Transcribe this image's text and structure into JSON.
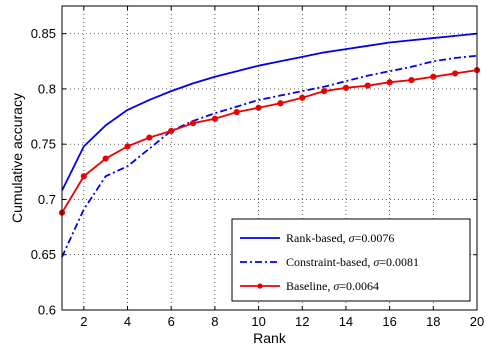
{
  "chart_data": {
    "type": "line",
    "xlabel": "Rank",
    "ylabel": "Cumulative accuracy",
    "xlim": [
      1,
      20
    ],
    "ylim": [
      0.6,
      0.875
    ],
    "xticks": [
      2,
      4,
      6,
      8,
      10,
      12,
      14,
      16,
      18,
      20
    ],
    "yticks": [
      0.6,
      0.65,
      0.7,
      0.75,
      0.8,
      0.85
    ],
    "ytick_labels": [
      "0.6",
      "0.65",
      "0.7",
      "0.75",
      "0.8",
      "0.85"
    ],
    "grid": true,
    "grid_style": "dotted",
    "legend_position": "bottom-right",
    "x": [
      1,
      2,
      3,
      4,
      5,
      6,
      7,
      8,
      9,
      10,
      11,
      12,
      13,
      14,
      15,
      16,
      17,
      18,
      19,
      20
    ],
    "series": [
      {
        "name": "Rank-based, ",
        "sigma": "0.0076",
        "color": "#0000ee",
        "style": "solid",
        "markers": false,
        "values": [
          0.708,
          0.748,
          0.767,
          0.781,
          0.79,
          0.798,
          0.805,
          0.811,
          0.816,
          0.821,
          0.825,
          0.829,
          0.833,
          0.836,
          0.839,
          0.842,
          0.844,
          0.846,
          0.848,
          0.85
        ]
      },
      {
        "name": "Constraint-based, ",
        "sigma": "0.0081",
        "color": "#0000ee",
        "style": "dashdot",
        "markers": false,
        "values": [
          0.648,
          0.691,
          0.721,
          0.73,
          0.746,
          0.762,
          0.771,
          0.778,
          0.784,
          0.79,
          0.794,
          0.798,
          0.802,
          0.807,
          0.812,
          0.816,
          0.82,
          0.825,
          0.828,
          0.83
        ]
      },
      {
        "name": "Baseline, ",
        "sigma": "0.0064",
        "color": "#ee0000",
        "style": "solid",
        "markers": true,
        "values": [
          0.688,
          0.721,
          0.737,
          0.748,
          0.756,
          0.762,
          0.769,
          0.773,
          0.779,
          0.783,
          0.787,
          0.792,
          0.798,
          0.801,
          0.803,
          0.806,
          0.808,
          0.811,
          0.814,
          0.817
        ]
      }
    ],
    "sigma_symbol": "σ",
    "sigma_eq": "="
  }
}
